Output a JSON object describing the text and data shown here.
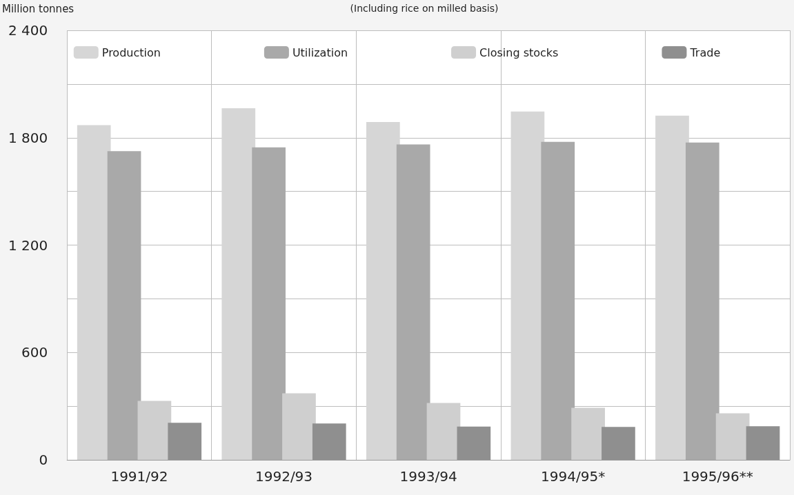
{
  "chart_data": {
    "type": "bar",
    "title": "(Including rice on milled basis)",
    "ylabel": "Million tonnes",
    "categories": [
      "1991/92",
      "1992/93",
      "1993/94",
      "1994/95*",
      "1995/96**"
    ],
    "series": [
      {
        "name": "Production",
        "color": "#d6d6d6",
        "values": [
          1870,
          1965,
          1888,
          1946,
          1923
        ]
      },
      {
        "name": "Utilization",
        "color": "#a9a9a9",
        "values": [
          1725,
          1746,
          1762,
          1777,
          1773
        ]
      },
      {
        "name": "Closing stocks",
        "color": "#cfcfcf",
        "values": [
          329,
          372,
          318,
          291,
          260
        ]
      },
      {
        "name": "Trade",
        "color": "#8f8f8f",
        "values": [
          207,
          203,
          186,
          184,
          188
        ]
      }
    ],
    "ylim": [
      0,
      2400
    ],
    "yticks": [
      0,
      {
        "value": 300,
        "label": null
      },
      {
        "value": 600,
        "label": "600"
      },
      {
        "value": 900,
        "label": null
      },
      {
        "value": 1200,
        "label": "1 200"
      },
      {
        "value": 1500,
        "label": null
      },
      {
        "value": 1800,
        "label": "1 800"
      },
      {
        "value": 2100,
        "label": null
      },
      {
        "value": 2400,
        "label": "2 400"
      }
    ],
    "grid": true,
    "legend": "top"
  }
}
